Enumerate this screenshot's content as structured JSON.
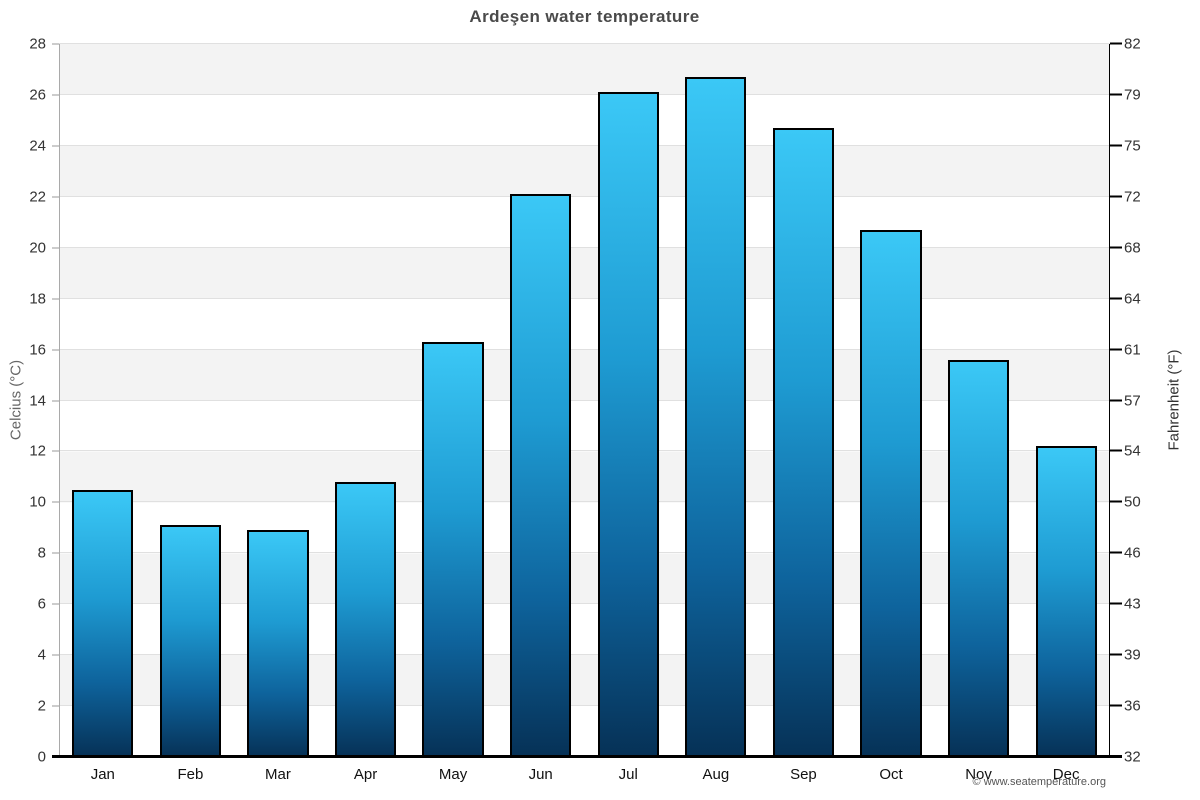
{
  "title": "Ardeşen water temperature",
  "footer": "© www.seatemperature.org",
  "axes": {
    "left_label": "Celcius (°C)",
    "right_label": "Fahrenheit (°F)",
    "left_ticks_celsius": [
      0,
      2,
      4,
      6,
      8,
      10,
      12,
      14,
      16,
      18,
      20,
      22,
      24,
      26,
      28
    ],
    "right_ticks_fahrenheit": [
      32,
      36,
      39,
      43,
      46,
      50,
      54,
      57,
      61,
      64,
      68,
      72,
      75,
      79,
      82
    ],
    "ylim_celsius": [
      0,
      28
    ]
  },
  "chart_data": {
    "type": "bar",
    "title": "Ardeşen water temperature",
    "categories": [
      "Jan",
      "Feb",
      "Mar",
      "Apr",
      "May",
      "Jun",
      "Jul",
      "Aug",
      "Sep",
      "Oct",
      "Nov",
      "Dec"
    ],
    "values": [
      10.5,
      9.1,
      8.9,
      10.8,
      16.3,
      22.1,
      26.1,
      26.7,
      24.7,
      20.7,
      15.6,
      12.2
    ],
    "unit": "°C",
    "xlabel": "",
    "ylabel": "Celcius (°C)",
    "ylabel_right": "Fahrenheit (°F)",
    "ylim": [
      0,
      28
    ],
    "grid": "horizontal lines every 2°C with alternating shaded bands",
    "legend": "none",
    "bar_style": "vertical gradient cyan to dark navy, black outline"
  },
  "colors": {
    "bar_gradient_top": "#3bc8f6",
    "bar_gradient_mid": "#0e639c",
    "bar_gradient_bottom": "#063156",
    "bar_border": "#000000",
    "band_shaded": "#f3f3f3",
    "band_plain": "#ffffff",
    "gridline": "#e0e0e0",
    "baseline": "#000000",
    "title_text": "#4a4a4a",
    "tick_text": "#333333",
    "left_axis_label_text": "#666666",
    "footer_text": "#555555"
  }
}
